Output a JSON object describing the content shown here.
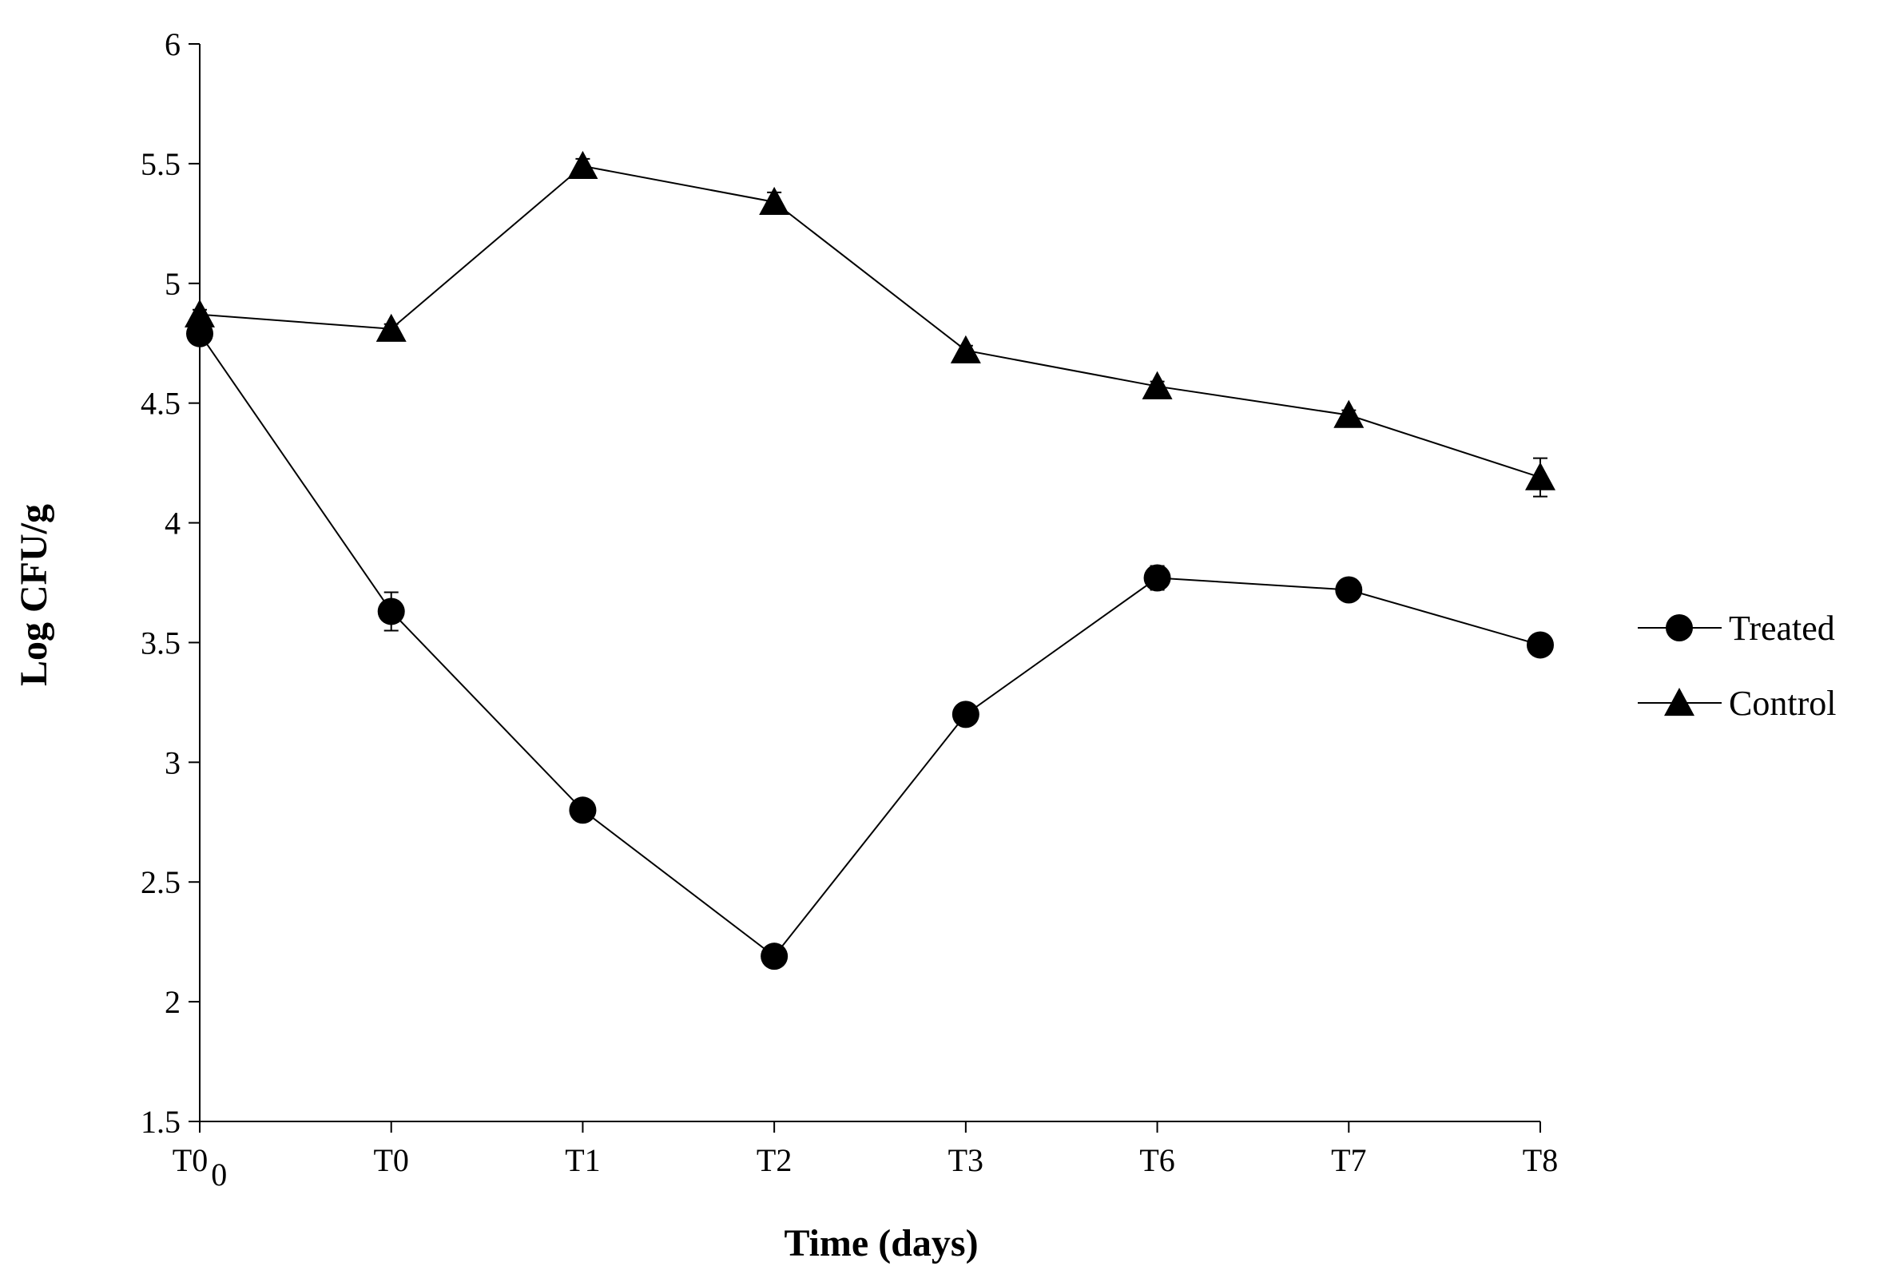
{
  "chart_data": {
    "type": "line",
    "title": "",
    "xlabel": "Time (days)",
    "ylabel": "Log CFU/g",
    "categories": [
      "T0_0",
      "T0",
      "T1",
      "T2",
      "T3",
      "T6",
      "T7",
      "T8"
    ],
    "x_tick_labels": [
      {
        "main": "T0",
        "sub": "0"
      },
      {
        "main": "T0",
        "sub": ""
      },
      {
        "main": "T1",
        "sub": ""
      },
      {
        "main": "T2",
        "sub": ""
      },
      {
        "main": "T3",
        "sub": ""
      },
      {
        "main": "T6",
        "sub": ""
      },
      {
        "main": "T7",
        "sub": ""
      },
      {
        "main": "T8",
        "sub": ""
      }
    ],
    "ylim": [
      1.5,
      6
    ],
    "y_ticks": [
      "1.5",
      "2",
      "2.5",
      "3",
      "3.5",
      "4",
      "4.5",
      "5",
      "5.5",
      "6"
    ],
    "grid": false,
    "legend_position": "right",
    "series": [
      {
        "name": "Treated",
        "marker": "circle",
        "color": "#000000",
        "values": [
          4.79,
          3.63,
          2.8,
          2.19,
          3.2,
          3.77,
          3.72,
          3.49
        ],
        "errors": [
          0.03,
          0.08,
          0.02,
          0.02,
          0.02,
          0.05,
          0.03,
          0.03
        ]
      },
      {
        "name": "Control",
        "marker": "triangle",
        "color": "#000000",
        "values": [
          4.87,
          4.81,
          5.49,
          5.34,
          4.72,
          4.57,
          4.45,
          4.19
        ],
        "errors": [
          0.02,
          0.02,
          0.03,
          0.04,
          0.02,
          0.02,
          0.02,
          0.08
        ]
      }
    ]
  }
}
